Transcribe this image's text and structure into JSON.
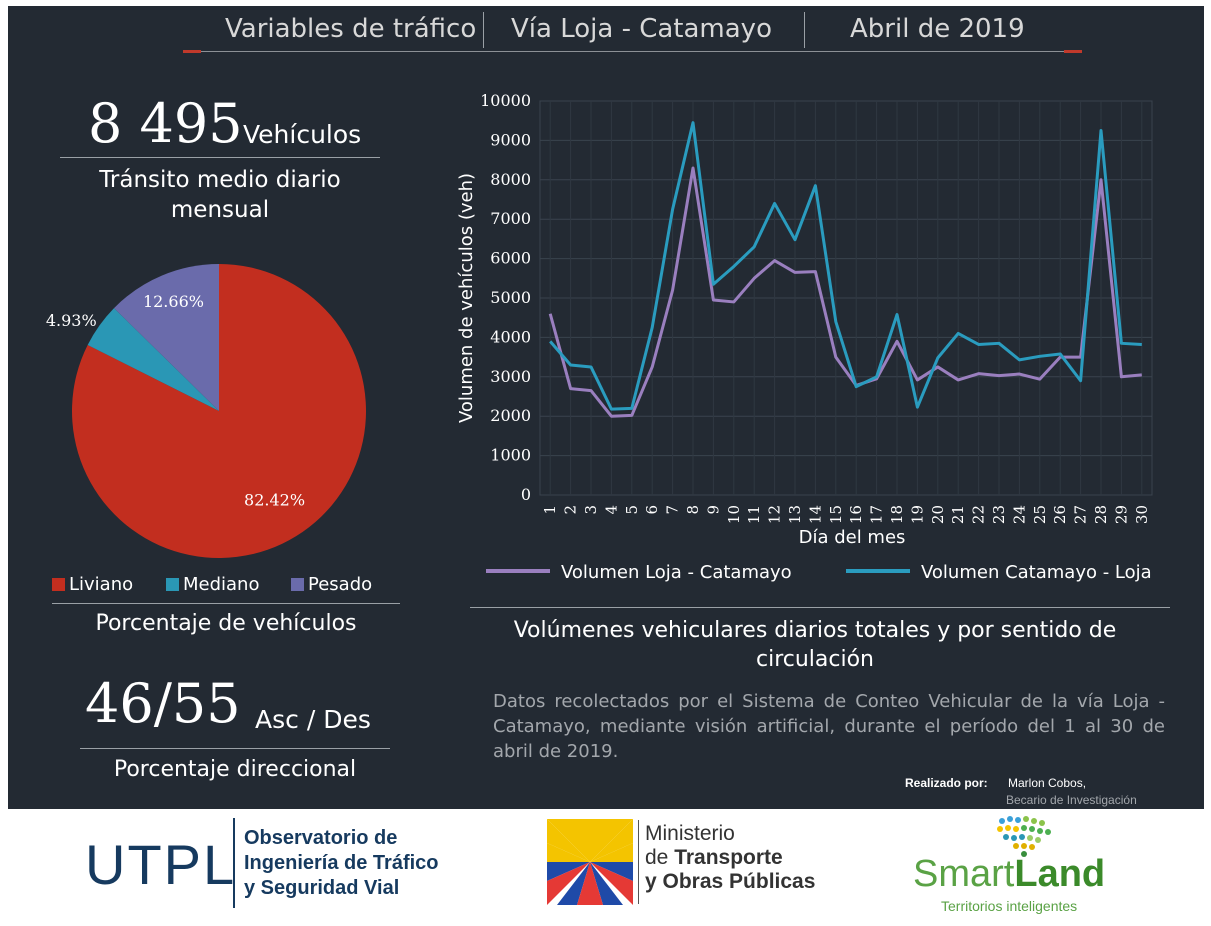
{
  "header": {
    "left": "Variables de tráfico",
    "center": "Vía Loja - Catamayo",
    "right": "Abril de 2019"
  },
  "tmdm": {
    "value": "8 495",
    "unit": "Vehículos",
    "caption": "Tránsito medio diario mensual"
  },
  "vehicle_share": {
    "caption": "Porcentaje de vehículos",
    "legend": [
      {
        "label": "Liviano",
        "color": "#c22e1f"
      },
      {
        "label": "Mediano",
        "color": "#2a97b5"
      },
      {
        "label": "Pesado",
        "color": "#6a6bab"
      }
    ]
  },
  "directional": {
    "value": "46/55",
    "unit": "Asc / Des",
    "caption": "Porcentaje direccional"
  },
  "chart_title": "Volúmenes vehiculares diarios totales y por sentido de circulación",
  "description": "Datos recolectados por el Sistema de Conteo Vehicular de la vía Loja - Catamayo, mediante visión artificial, durante el período del 1 al 30 de abril de 2019.",
  "credits": {
    "prefix": "Realizado por:",
    "name": "Marlon Cobos,",
    "role": "Becario de Investigación"
  },
  "footer": {
    "utpl": "UTPL",
    "utpl_line1": "Observatorio de",
    "utpl_line2": "Ingeniería de Tráfico",
    "utpl_line3": "y Seguridad Vial",
    "mtop_line1": "Ministerio",
    "mtop_line2_pre": "de ",
    "mtop_line2": "Transporte",
    "mtop_line3": "y Obras Públicas",
    "smart": "Smart",
    "land": "Land",
    "smart_tag": "Territorios inteligentes"
  },
  "chart_data": [
    {
      "type": "pie",
      "labels": [
        "Liviano",
        "Mediano",
        "Pesado"
      ],
      "values": [
        82.42,
        4.93,
        12.66
      ],
      "data_labels": [
        "82.42%",
        "4.93%",
        "12.66%"
      ],
      "colors": [
        "#c22e1f",
        "#2a97b5",
        "#6a6bab"
      ]
    },
    {
      "type": "line",
      "xlabel": "Día del mes",
      "ylabel": "Volumen de vehículos (veh)",
      "ylim": [
        0,
        10000
      ],
      "yticks": [
        0,
        1000,
        2000,
        3000,
        4000,
        5000,
        6000,
        7000,
        8000,
        9000,
        10000
      ],
      "x": [
        1,
        2,
        3,
        4,
        5,
        6,
        7,
        8,
        9,
        10,
        11,
        12,
        13,
        14,
        15,
        16,
        17,
        18,
        19,
        20,
        21,
        22,
        23,
        24,
        25,
        26,
        27,
        28,
        29,
        30
      ],
      "grid": true,
      "legend_position": "bottom",
      "series": [
        {
          "name": "Volumen Loja - Catamayo",
          "color": "#9a7fbf",
          "values": [
            4600,
            2700,
            2650,
            2000,
            2020,
            3250,
            5200,
            8300,
            4950,
            4900,
            5500,
            5950,
            5650,
            5670,
            3500,
            2780,
            2950,
            3900,
            2920,
            3250,
            2920,
            3080,
            3030,
            3070,
            2940,
            3500,
            3500,
            8000,
            3000,
            3050
          ]
        },
        {
          "name": "Volumen Catamayo - Loja",
          "color": "#2a9cbf",
          "values": [
            3900,
            3300,
            3250,
            2180,
            2200,
            4250,
            7250,
            9450,
            5350,
            5800,
            6300,
            7400,
            6480,
            7850,
            4400,
            2750,
            3000,
            4580,
            2230,
            3480,
            4100,
            3820,
            3850,
            3430,
            3520,
            3580,
            2900,
            9250,
            3850,
            3820
          ]
        }
      ]
    }
  ]
}
